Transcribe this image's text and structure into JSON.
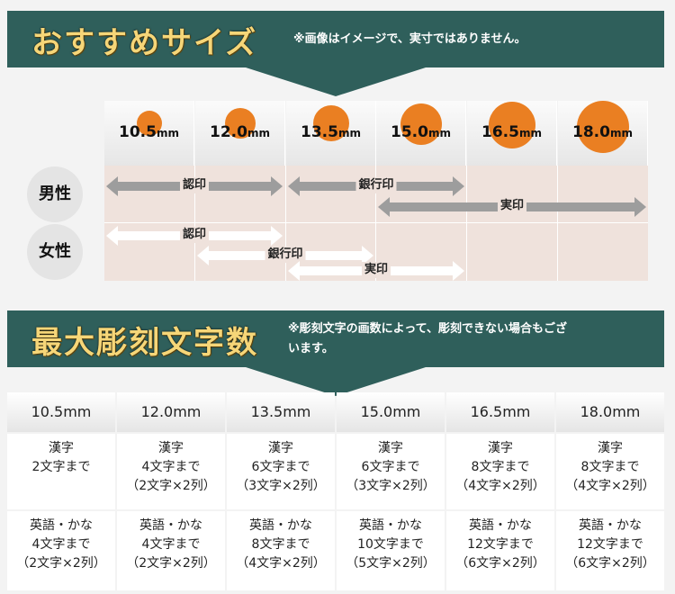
{
  "section1": {
    "title": "おすすめサイズ",
    "note": "※画像はイメージで、実寸ではありません。"
  },
  "sizes": [
    {
      "num": "10.5",
      "unit": "mm"
    },
    {
      "num": "12.0",
      "unit": "mm"
    },
    {
      "num": "13.5",
      "unit": "mm"
    },
    {
      "num": "15.0",
      "unit": "mm"
    },
    {
      "num": "16.5",
      "unit": "mm"
    },
    {
      "num": "18.0",
      "unit": "mm"
    }
  ],
  "rows": {
    "male": "男性",
    "female": "女性"
  },
  "ranges": {
    "male": [
      {
        "label": "認印",
        "from": "10.5mm",
        "to": "12.0mm"
      },
      {
        "label": "銀行印",
        "from": "13.5mm",
        "to": "15.0mm"
      },
      {
        "label": "実印",
        "from": "15.0mm",
        "to": "18.0mm"
      }
    ],
    "female": [
      {
        "label": "認印",
        "from": "10.5mm",
        "to": "12.0mm"
      },
      {
        "label": "銀行印",
        "from": "12.0mm",
        "to": "13.5mm"
      },
      {
        "label": "実印",
        "from": "13.5mm",
        "to": "15.0mm"
      }
    ]
  },
  "section2": {
    "title": "最大彫刻文字数",
    "note_line1": "※彫刻文字の画数によって、彫刻できない場合もござ",
    "note_line2": "います。"
  },
  "table": [
    {
      "size": "10.5mm",
      "kanji": [
        "漢字",
        "2文字まで"
      ],
      "kana": [
        "英語・かな",
        "4文字まで",
        "（2文字×2列）"
      ]
    },
    {
      "size": "12.0mm",
      "kanji": [
        "漢字",
        "4文字まで",
        "（2文字×2列）"
      ],
      "kana": [
        "英語・かな",
        "4文字まで",
        "（2文字×2列）"
      ]
    },
    {
      "size": "13.5mm",
      "kanji": [
        "漢字",
        "6文字まで",
        "（3文字×2列）"
      ],
      "kana": [
        "英語・かな",
        "8文字まで",
        "（4文字×2列）"
      ]
    },
    {
      "size": "15.0mm",
      "kanji": [
        "漢字",
        "6文字まで",
        "（3文字×2列）"
      ],
      "kana": [
        "英語・かな",
        "10文字まで",
        "（5文字×2列）"
      ]
    },
    {
      "size": "16.5mm",
      "kanji": [
        "漢字",
        "8文字まで",
        "（4文字×2列）"
      ],
      "kana": [
        "英語・かな",
        "12文字まで",
        "（6文字×2列）"
      ]
    },
    {
      "size": "18.0mm",
      "kanji": [
        "漢字",
        "8文字まで",
        "（4文字×2列）"
      ],
      "kana": [
        "英語・かな",
        "12文字まで",
        "（6文字×2列）"
      ]
    }
  ],
  "colors": {
    "banner": "#2f5f5b",
    "title": "#f6d678",
    "dot": "#ea7f22",
    "grid": "#efe2dc",
    "gray_arrow": "#9d9d9d"
  }
}
